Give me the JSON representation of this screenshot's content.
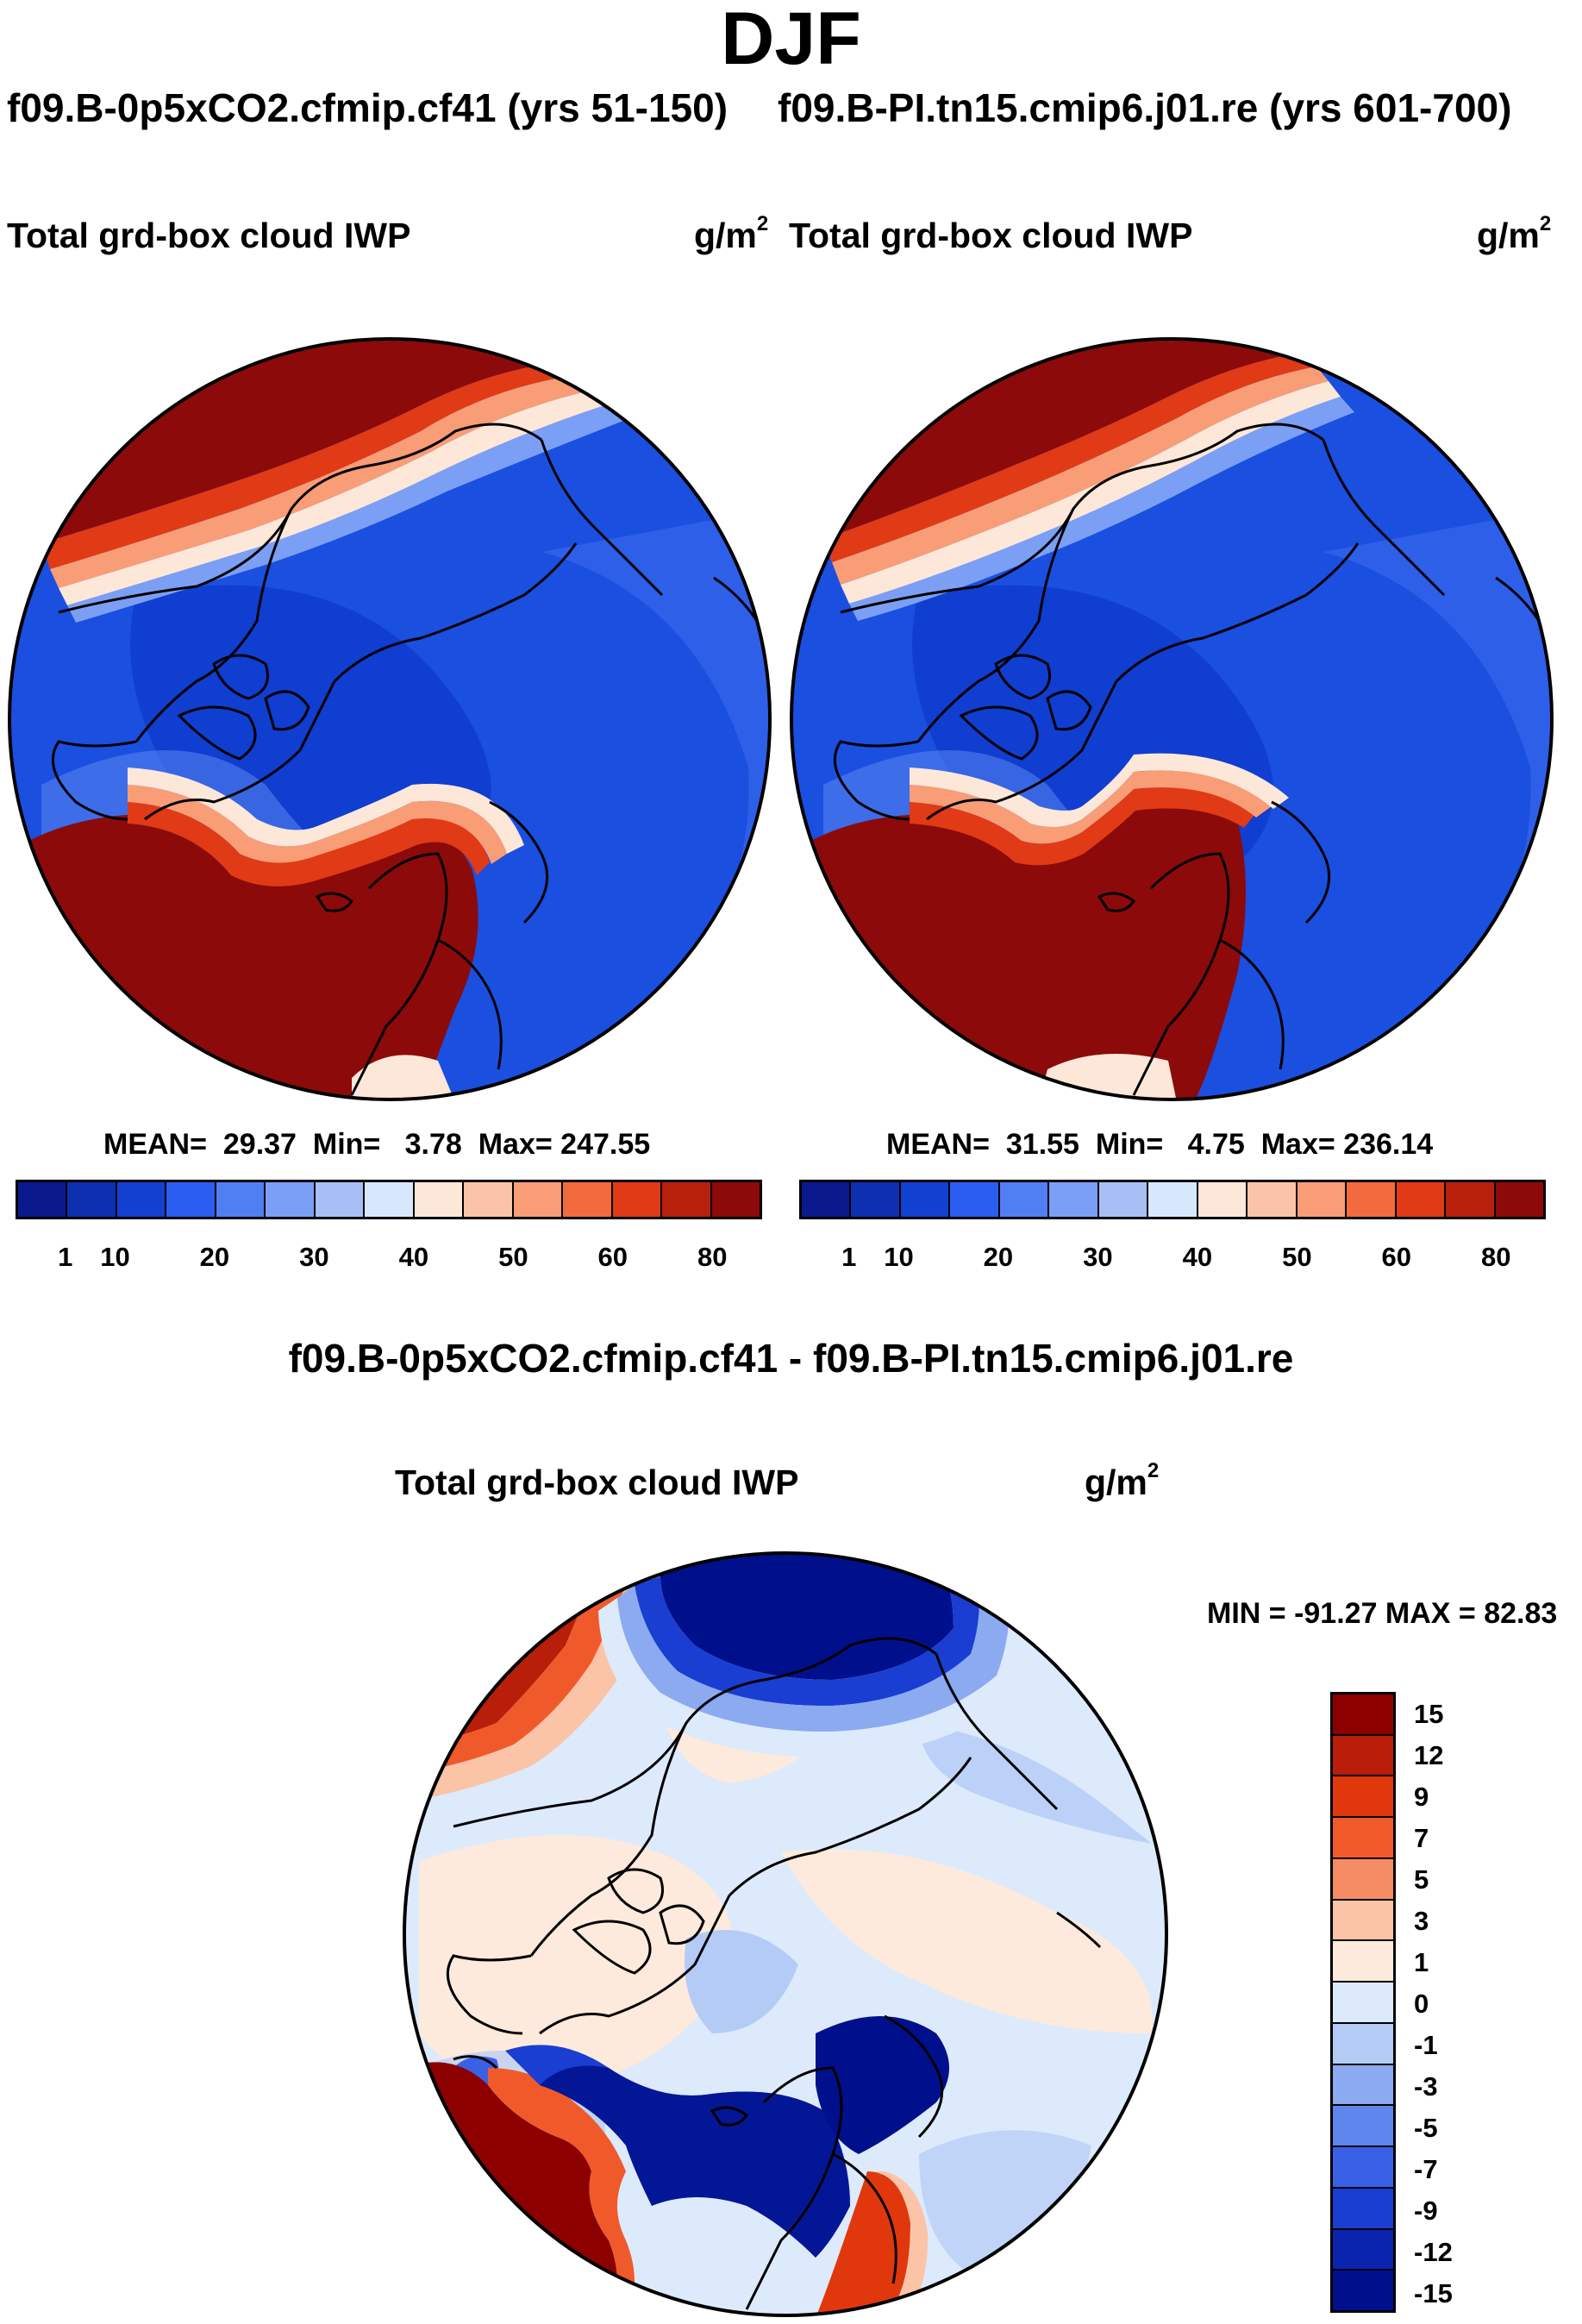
{
  "figure": {
    "title": "DJF",
    "run_a_title": "f09.B-0p5xCO2.cfmip.cf41 (yrs 51-150)",
    "run_b_title": "f09.B-PI.tn15.cmip6.j01.re (yrs 601-700)",
    "diff_title": "f09.B-0p5xCO2.cfmip.cf41 - f09.B-PI.tn15.cmip6.j01.re"
  },
  "panels": {
    "left": {
      "variable": "Total grd-box cloud IWP",
      "unit": "g/m",
      "unit_exp": "2",
      "stats": {
        "mean_label": "MEAN=",
        "mean": "29.37",
        "min_label": "Min=",
        "min": "3.78",
        "max_label": "Max=",
        "max": "247.55"
      }
    },
    "right": {
      "variable": "Total grd-box cloud IWP",
      "unit": "g/m",
      "unit_exp": "2",
      "stats": {
        "mean_label": "MEAN=",
        "mean": "31.55",
        "min_label": "Min=",
        "min": "4.75",
        "max_label": "Max=",
        "max": "236.14"
      }
    },
    "diff": {
      "variable": "Total grd-box cloud IWP",
      "unit": "g/m",
      "unit_exp": "2",
      "stats_text": "MIN = -91.27 MAX =  82.83"
    }
  },
  "colorbars": {
    "abs": {
      "colors": [
        "#0a1a8c",
        "#0d2fb0",
        "#1240d0",
        "#2a5ef0",
        "#4f7ff2",
        "#7b9ff4",
        "#a6c0f6",
        "#d8e8fc",
        "#fde7d9",
        "#fbc4a8",
        "#f89d76",
        "#f26a3e",
        "#e03a16",
        "#b8200c",
        "#8c0a0a"
      ],
      "tick_labels": [
        "1",
        "10",
        "20",
        "30",
        "40",
        "50",
        "60",
        "80"
      ]
    },
    "diff": {
      "colors": [
        "#8c0000",
        "#b81e0a",
        "#e0380c",
        "#f05a2a",
        "#f58c64",
        "#fbc4a6",
        "#fdeadc",
        "#ddeafc",
        "#b3cbf5",
        "#8baaf0",
        "#5f86ed",
        "#3a60e6",
        "#1a3ed2",
        "#0a24b0",
        "#00108c"
      ],
      "tick_labels": [
        "15",
        "12",
        "9",
        "7",
        "5",
        "3",
        "1",
        "0",
        "-1",
        "-3",
        "-5",
        "-7",
        "-9",
        "-12",
        "-15"
      ]
    }
  }
}
